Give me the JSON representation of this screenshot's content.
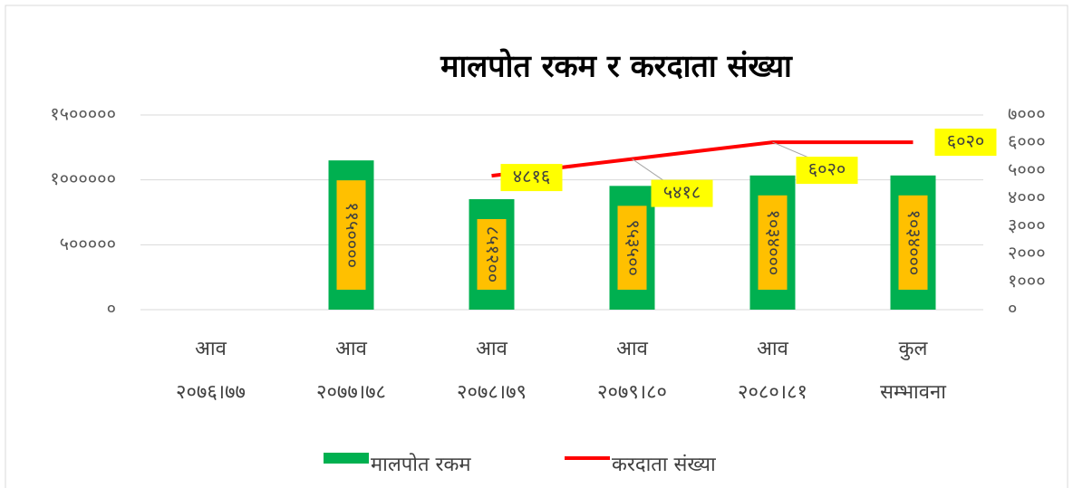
{
  "chart_data": {
    "type": "combo",
    "title": "मालपोत रकम र करदाता संख्या",
    "categories": [
      "आव\n२०७६।७७",
      "आव\n२०७७।७८",
      "आव\n२०७८।७९",
      "आव\n२०७९।८०",
      "आव\n२०८०।८१",
      "कुल\nसम्भावना"
    ],
    "series": [
      {
        "name": "मालपोत रकम",
        "type": "bar",
        "color": "#00b050",
        "label_color": "#ffc000",
        "values": [
          null,
          1150000,
          851200,
          953500,
          1034000,
          1034000
        ],
        "value_labels": [
          null,
          "११५००००",
          "८५१२००",
          "९५३५००",
          "१०३४०००",
          "१०३४०००"
        ]
      },
      {
        "name": "करदाता संख्या",
        "type": "line",
        "axis": "y2",
        "color": "#ff0000",
        "label_color": "#ffff00",
        "values": [
          null,
          null,
          4816,
          5418,
          6020,
          6020
        ],
        "value_labels": [
          null,
          null,
          "४८१६",
          "५४१८",
          "६०२०",
          "६०२०"
        ]
      }
    ],
    "ylim": [
      0,
      1500000
    ],
    "yticks": [
      {
        "value": 0,
        "label": "०"
      },
      {
        "value": 500000,
        "label": "५०००००"
      },
      {
        "value": 1000000,
        "label": "१००००००"
      },
      {
        "value": 1500000,
        "label": "१५०००००"
      }
    ],
    "y2lim": [
      0,
      7000
    ],
    "y2ticks": [
      {
        "value": 0,
        "label": "०"
      },
      {
        "value": 1000,
        "label": "१०००"
      },
      {
        "value": 2000,
        "label": "२०००"
      },
      {
        "value": 3000,
        "label": "३०००"
      },
      {
        "value": 4000,
        "label": "४०००"
      },
      {
        "value": 5000,
        "label": "५०००"
      },
      {
        "value": 6000,
        "label": "६०००"
      },
      {
        "value": 7000,
        "label": "७०००"
      }
    ],
    "grid": true,
    "legend": "bottom"
  }
}
